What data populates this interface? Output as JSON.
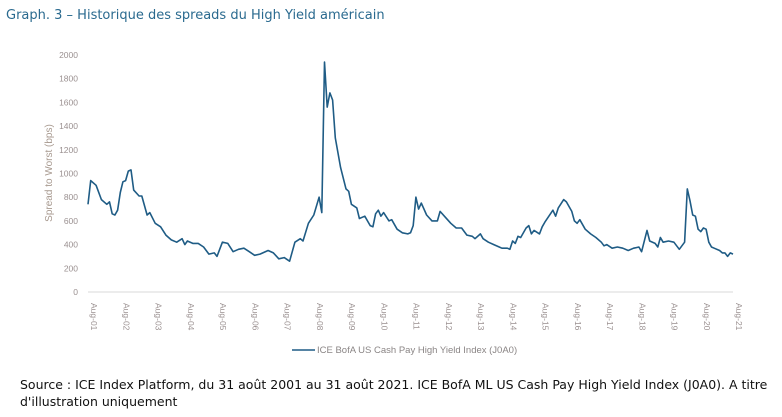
{
  "title": "Graph. 3 – Historique des spreads du High Yield américain",
  "source": "Source : ICE Index Platform, du 31 août 2001 au 31 août 2021. ICE BofA ML US Cash Pay High Yield Index (J0A0). A titre d'illustration uniquement",
  "chart_data": {
    "type": "line",
    "title": "",
    "xlabel": "",
    "ylabel": "Spread to Worst (bps)",
    "ylim": [
      0,
      2000
    ],
    "yticks": [
      0,
      200,
      400,
      600,
      800,
      1000,
      1200,
      1400,
      1600,
      1800,
      2000
    ],
    "xlim": [
      "2001-08",
      "2021-08"
    ],
    "xtick_labels": [
      "Aug-01",
      "Aug-02",
      "Aug-03",
      "Aug-04",
      "Aug-05",
      "Aug-06",
      "Aug-07",
      "Aug-08",
      "Aug-09",
      "Aug-10",
      "Aug-11",
      "Aug-12",
      "Aug-13",
      "Aug-14",
      "Aug-15",
      "Aug-16",
      "Aug-17",
      "Aug-18",
      "Aug-19",
      "Aug-20",
      "Aug-21"
    ],
    "grid": false,
    "legend_placement": "bottom",
    "series": [
      {
        "name": "ICE BofA US Cash Pay High Yield Index (J0A0)",
        "color": "#1f5c85",
        "x": [
          "2001-08",
          "2001-09",
          "2001-11",
          "2002-01",
          "2002-03",
          "2002-04",
          "2002-05",
          "2002-06",
          "2002-07",
          "2002-08",
          "2002-09",
          "2002-10",
          "2002-11",
          "2002-12",
          "2003-01",
          "2003-03",
          "2003-04",
          "2003-06",
          "2003-07",
          "2003-09",
          "2003-11",
          "2004-01",
          "2004-03",
          "2004-05",
          "2004-07",
          "2004-08",
          "2004-09",
          "2004-11",
          "2005-01",
          "2005-03",
          "2005-05",
          "2005-07",
          "2005-08",
          "2005-10",
          "2005-12",
          "2006-02",
          "2006-04",
          "2006-06",
          "2006-08",
          "2006-10",
          "2006-12",
          "2007-03",
          "2007-05",
          "2007-07",
          "2007-09",
          "2007-11",
          "2008-01",
          "2008-03",
          "2008-04",
          "2008-06",
          "2008-08",
          "2008-10",
          "2008-11",
          "2008-12",
          "2009-01",
          "2009-02",
          "2009-03",
          "2009-04",
          "2009-06",
          "2009-08",
          "2009-09",
          "2009-10",
          "2009-12",
          "2010-01",
          "2010-03",
          "2010-05",
          "2010-06",
          "2010-07",
          "2010-08",
          "2010-09",
          "2010-10",
          "2010-12",
          "2011-01",
          "2011-03",
          "2011-05",
          "2011-07",
          "2011-08",
          "2011-09",
          "2011-10",
          "2011-11",
          "2011-12",
          "2012-02",
          "2012-04",
          "2012-06",
          "2012-07",
          "2012-09",
          "2012-11",
          "2013-01",
          "2013-03",
          "2013-05",
          "2013-07",
          "2013-08",
          "2013-10",
          "2013-11",
          "2014-01",
          "2014-03",
          "2014-05",
          "2014-06",
          "2014-08",
          "2014-09",
          "2014-10",
          "2014-11",
          "2014-12",
          "2015-01",
          "2015-03",
          "2015-04",
          "2015-05",
          "2015-06",
          "2015-08",
          "2015-09",
          "2015-10",
          "2016-01",
          "2016-02",
          "2016-03",
          "2016-05",
          "2016-06",
          "2016-08",
          "2016-09",
          "2016-10",
          "2016-11",
          "2017-01",
          "2017-03",
          "2017-05",
          "2017-07",
          "2017-08",
          "2017-09",
          "2017-11",
          "2018-01",
          "2018-03",
          "2018-05",
          "2018-07",
          "2018-09",
          "2018-10",
          "2018-12",
          "2019-01",
          "2019-03",
          "2019-04",
          "2019-05",
          "2019-06",
          "2019-08",
          "2019-10",
          "2019-12",
          "2020-02",
          "2020-03",
          "2020-04",
          "2020-05",
          "2020-06",
          "2020-07",
          "2020-08",
          "2020-09",
          "2020-10",
          "2020-11",
          "2020-12",
          "2021-01",
          "2021-03",
          "2021-04",
          "2021-05",
          "2021-06",
          "2021-07",
          "2021-08"
        ],
        "values": [
          740,
          940,
          900,
          780,
          740,
          760,
          660,
          650,
          690,
          840,
          930,
          940,
          1020,
          1030,
          860,
          810,
          810,
          650,
          670,
          580,
          550,
          480,
          440,
          420,
          450,
          400,
          430,
          410,
          410,
          380,
          320,
          330,
          300,
          420,
          410,
          340,
          360,
          370,
          340,
          310,
          320,
          350,
          330,
          280,
          290,
          260,
          420,
          450,
          430,
          580,
          650,
          800,
          670,
          1940,
          1560,
          1680,
          1620,
          1300,
          1050,
          870,
          850,
          740,
          710,
          620,
          640,
          560,
          550,
          660,
          690,
          640,
          670,
          600,
          610,
          530,
          500,
          490,
          500,
          560,
          800,
          700,
          750,
          650,
          600,
          600,
          680,
          630,
          580,
          540,
          540,
          480,
          470,
          450,
          490,
          450,
          420,
          400,
          380,
          370,
          370,
          360,
          430,
          410,
          470,
          460,
          540,
          560,
          490,
          520,
          490,
          550,
          590,
          690,
          640,
          710,
          780,
          760,
          680,
          600,
          580,
          610,
          530,
          490,
          460,
          420,
          390,
          400,
          370,
          380,
          370,
          350,
          370,
          380,
          340,
          520,
          430,
          410,
          380,
          460,
          420,
          430,
          420,
          360,
          420,
          870,
          770,
          650,
          640,
          530,
          510,
          540,
          530,
          420,
          380,
          370,
          350,
          330,
          330,
          300,
          330,
          320
        ]
      }
    ]
  }
}
